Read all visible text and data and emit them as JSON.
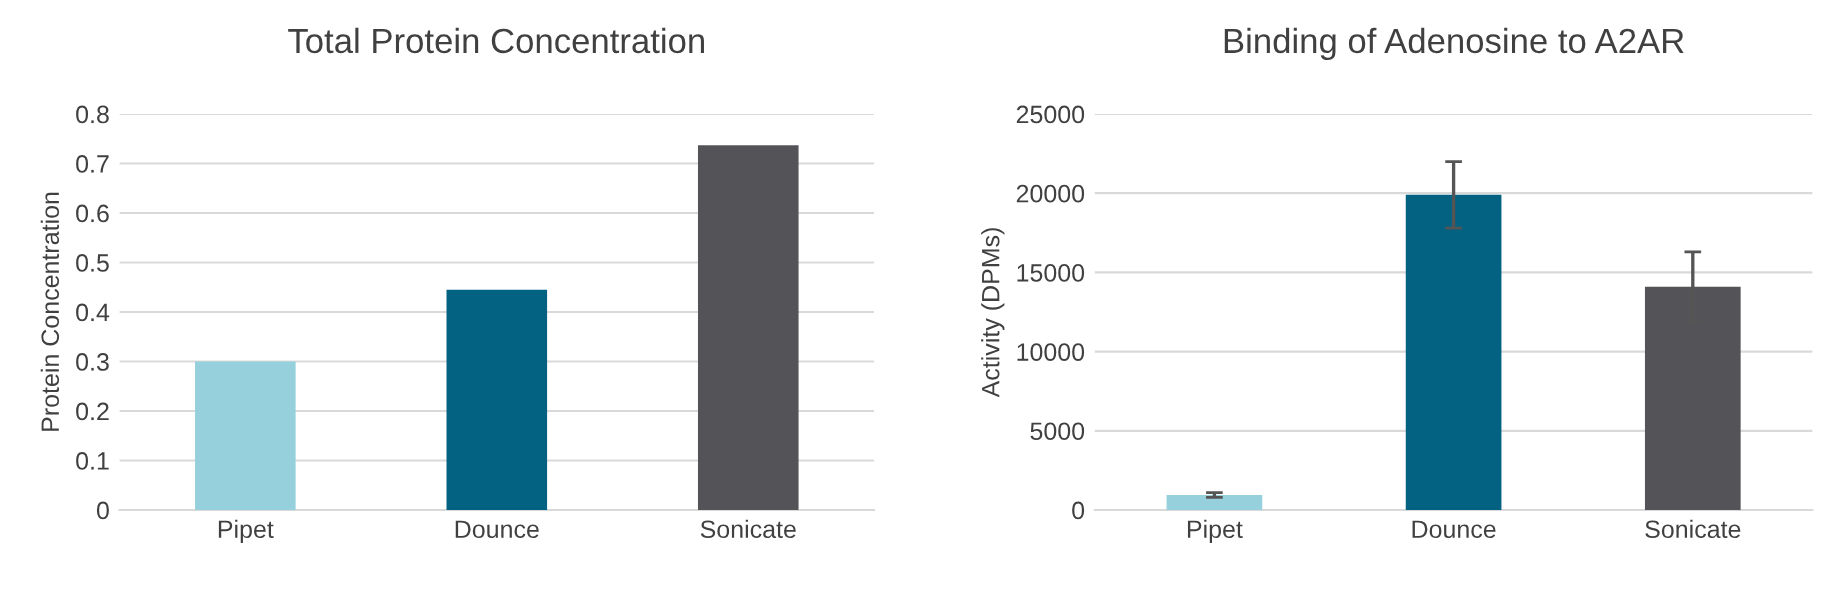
{
  "chart_data": [
    {
      "type": "bar",
      "title": "Total Protein Concentration",
      "ylabel": "Protein Concentration",
      "categories": [
        "Pipet",
        "Dounce",
        "Sonicate"
      ],
      "values": [
        0.3,
        0.445,
        0.737
      ],
      "colors": [
        "#96d0dc",
        "#036282",
        "#545458"
      ],
      "ylim": [
        0,
        0.8
      ],
      "yticks": [
        0,
        0.1,
        0.2,
        0.3,
        0.4,
        0.5,
        0.6,
        0.7,
        0.8
      ],
      "grid": "y"
    },
    {
      "type": "bar",
      "title": "Binding of Adenosine to A2AR",
      "ylabel": "Activity (DPMs)",
      "categories": [
        "Pipet",
        "Dounce",
        "Sonicate"
      ],
      "values": [
        950,
        19900,
        14100
      ],
      "errors": [
        150,
        2100,
        2200
      ],
      "colors": [
        "#96d0dc",
        "#036282",
        "#545458"
      ],
      "ylim": [
        0,
        25000
      ],
      "yticks": [
        0,
        5000,
        10000,
        15000,
        20000,
        25000
      ],
      "grid": "y"
    }
  ]
}
